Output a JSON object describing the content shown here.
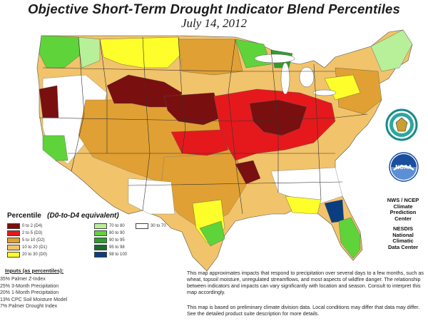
{
  "title": {
    "part1": "Objective",
    "part2": "Short-Term",
    "part3": "Drought Indicator Blend Percentiles"
  },
  "date": "July 14, 2012",
  "legend": {
    "title": "Percentile",
    "equiv": "(D0-to-D4 equivalent)",
    "items": [
      {
        "label": "0 to 2  (D4)",
        "color": "#7a0f0f"
      },
      {
        "label": "2 to 5  (D3)",
        "color": "#e5191c"
      },
      {
        "label": "5 to 10  (D2)",
        "color": "#e0a033"
      },
      {
        "label": "10 to 20  (D1)",
        "color": "#f1c36a"
      },
      {
        "label": "20 to 30  (D0)",
        "color": "#fefe2a"
      },
      {
        "label": "70 to 80",
        "color": "#b8f09a"
      },
      {
        "label": "80 to 90",
        "color": "#5ed43a"
      },
      {
        "label": "90 to 95",
        "color": "#2f9e2c"
      },
      {
        "label": "95 to 98",
        "color": "#1a6a2a"
      },
      {
        "label": "98 to 100",
        "color": "#0a3e80"
      },
      {
        "label": "30 to 70",
        "color": "#ffffff"
      }
    ]
  },
  "inputs": {
    "title": "Inputs (as percentiles):",
    "items": [
      "35% Palmer Z-Index",
      "25% 3-Month Precipitation",
      "20% 1-Month Precipitation",
      "13% CPC Soil Moisture Model",
      "7% Palmer Drought Index"
    ]
  },
  "notes": {
    "p1": "This map approximates impacts that respond to precipitation over several days to a few months, such as wheat, topsoil moisture, unregulated streamflows, and most aspects of wildfire danger. The relationship between indicators and impacts can vary significantly with location and season. Consult to interpret this map accordingly.",
    "p2": "This map is based on preliminary climate division data. Local conditions may differ that data may differ. See the detailed product suite description for more details."
  },
  "orgs": {
    "ncep_line1": "NWS / NCEP",
    "ncep_line2": "Climate",
    "ncep_line3": "Prediction",
    "ncep_line4": "Center",
    "ncdc_line1": "NESDIS",
    "ncdc_line2": "National",
    "ncdc_line3": "Climatic",
    "ncdc_line4": "Data Center",
    "noaa_logo_text": "NOAA"
  },
  "map_regions": [
    {
      "name": "us-base",
      "color": "#f1c36a"
    },
    {
      "name": "plains-orange",
      "color": "#e0a033"
    },
    {
      "name": "rockies-d4",
      "color": "#7a0f0f"
    },
    {
      "name": "midwest-d3",
      "color": "#e5191c"
    },
    {
      "name": "midwest-d4",
      "color": "#7a0f0f"
    },
    {
      "name": "northwest-green",
      "color": "#5ed43a"
    },
    {
      "name": "north-yellow",
      "color": "#fefe2a"
    },
    {
      "name": "florida-green",
      "color": "#5ed43a"
    },
    {
      "name": "florida-blue",
      "color": "#0a3e80"
    },
    {
      "name": "southeast-white",
      "color": "#ffffff"
    }
  ]
}
